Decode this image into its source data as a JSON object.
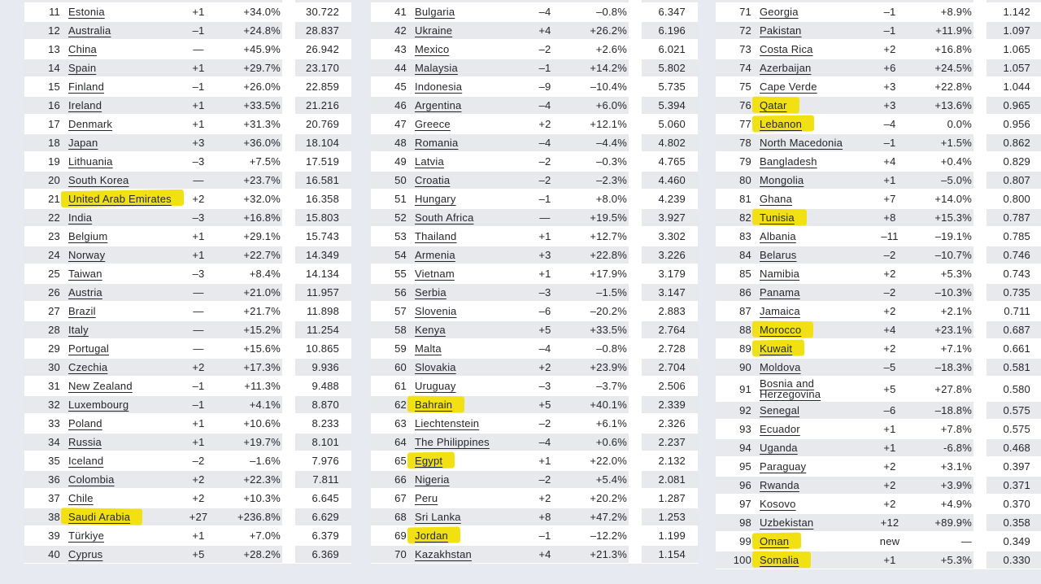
{
  "page": {
    "background_color": "#e7ebf1",
    "row_stripe_color": "#e8e9ed",
    "text_color": "#25262b",
    "highlight_color": "#f2e112"
  },
  "tables": [
    {
      "rows": [
        {
          "rank": "11",
          "country": "Estonia",
          "change": "+1",
          "pct": "+34.0%",
          "value": "30.722",
          "highlighted": false
        },
        {
          "rank": "12",
          "country": "Australia",
          "change": "–1",
          "pct": "+24.8%",
          "value": "28.837",
          "highlighted": false
        },
        {
          "rank": "13",
          "country": "China",
          "change": "—",
          "pct": "+45.9%",
          "value": "26.942",
          "highlighted": false
        },
        {
          "rank": "14",
          "country": "Spain",
          "change": "+1",
          "pct": "+29.7%",
          "value": "23.170",
          "highlighted": false
        },
        {
          "rank": "15",
          "country": "Finland",
          "change": "–1",
          "pct": "+26.0%",
          "value": "22.859",
          "highlighted": false
        },
        {
          "rank": "16",
          "country": "Ireland",
          "change": "+1",
          "pct": "+33.5%",
          "value": "21.216",
          "highlighted": false
        },
        {
          "rank": "17",
          "country": "Denmark",
          "change": "+1",
          "pct": "+31.3%",
          "value": "20.769",
          "highlighted": false
        },
        {
          "rank": "18",
          "country": "Japan",
          "change": "+3",
          "pct": "+36.0%",
          "value": "18.104",
          "highlighted": false
        },
        {
          "rank": "19",
          "country": "Lithuania",
          "change": "–3",
          "pct": "+7.5%",
          "value": "17.519",
          "highlighted": false
        },
        {
          "rank": "20",
          "country": "South Korea",
          "change": "—",
          "pct": "+23.7%",
          "value": "16.581",
          "highlighted": false
        },
        {
          "rank": "21",
          "country": "United Arab Emirates",
          "change": "+2",
          "pct": "+32.0%",
          "value": "16.358",
          "highlighted": true
        },
        {
          "rank": "22",
          "country": "India",
          "change": "–3",
          "pct": "+16.8%",
          "value": "15.803",
          "highlighted": false
        },
        {
          "rank": "23",
          "country": "Belgium",
          "change": "+1",
          "pct": "+29.1%",
          "value": "15.743",
          "highlighted": false
        },
        {
          "rank": "24",
          "country": "Norway",
          "change": "+1",
          "pct": "+22.7%",
          "value": "14.349",
          "highlighted": false
        },
        {
          "rank": "25",
          "country": "Taiwan",
          "change": "–3",
          "pct": "+8.4%",
          "value": "14.134",
          "highlighted": false
        },
        {
          "rank": "26",
          "country": "Austria",
          "change": "—",
          "pct": "+21.0%",
          "value": "11.957",
          "highlighted": false
        },
        {
          "rank": "27",
          "country": "Brazil",
          "change": "—",
          "pct": "+21.7%",
          "value": "11.898",
          "highlighted": false
        },
        {
          "rank": "28",
          "country": "Italy",
          "change": "—",
          "pct": "+15.2%",
          "value": "11.254",
          "highlighted": false
        },
        {
          "rank": "29",
          "country": "Portugal",
          "change": "—",
          "pct": "+15.6%",
          "value": "10.865",
          "highlighted": false
        },
        {
          "rank": "30",
          "country": "Czechia",
          "change": "+2",
          "pct": "+17.3%",
          "value": "9.936",
          "highlighted": false
        },
        {
          "rank": "31",
          "country": "New Zealand",
          "change": "–1",
          "pct": "+11.3%",
          "value": "9.488",
          "highlighted": false
        },
        {
          "rank": "32",
          "country": "Luxembourg",
          "change": "–1",
          "pct": "+4.1%",
          "value": "8.870",
          "highlighted": false
        },
        {
          "rank": "33",
          "country": "Poland",
          "change": "+1",
          "pct": "+10.6%",
          "value": "8.233",
          "highlighted": false
        },
        {
          "rank": "34",
          "country": "Russia",
          "change": "+1",
          "pct": "+19.7%",
          "value": "8.101",
          "highlighted": false
        },
        {
          "rank": "35",
          "country": "Iceland",
          "change": "–2",
          "pct": "–1.6%",
          "value": "7.976",
          "highlighted": false
        },
        {
          "rank": "36",
          "country": "Colombia",
          "change": "+2",
          "pct": "+22.3%",
          "value": "7.811",
          "highlighted": false
        },
        {
          "rank": "37",
          "country": "Chile",
          "change": "+2",
          "pct": "+10.3%",
          "value": "6.645",
          "highlighted": false
        },
        {
          "rank": "38",
          "country": "Saudi Arabia",
          "change": "+27",
          "pct": "+236.8%",
          "value": "6.629",
          "highlighted": true
        },
        {
          "rank": "39",
          "country": "Türkiye",
          "change": "+1",
          "pct": "+7.0%",
          "value": "6.379",
          "highlighted": false
        },
        {
          "rank": "40",
          "country": "Cyprus",
          "change": "+5",
          "pct": "+28.2%",
          "value": "6.369",
          "highlighted": false
        }
      ]
    },
    {
      "rows": [
        {
          "rank": "41",
          "country": "Bulgaria",
          "change": "–4",
          "pct": "–0.8%",
          "value": "6.347",
          "highlighted": false
        },
        {
          "rank": "42",
          "country": "Ukraine",
          "change": "+4",
          "pct": "+26.2%",
          "value": "6.196",
          "highlighted": false
        },
        {
          "rank": "43",
          "country": "Mexico",
          "change": "–2",
          "pct": "+2.6%",
          "value": "6.021",
          "highlighted": false
        },
        {
          "rank": "44",
          "country": "Malaysia",
          "change": "–1",
          "pct": "+14.2%",
          "value": "5.802",
          "highlighted": false
        },
        {
          "rank": "45",
          "country": "Indonesia",
          "change": "–9",
          "pct": "–10.4%",
          "value": "5.735",
          "highlighted": false
        },
        {
          "rank": "46",
          "country": "Argentina",
          "change": "–4",
          "pct": "+6.0%",
          "value": "5.394",
          "highlighted": false
        },
        {
          "rank": "47",
          "country": "Greece",
          "change": "+2",
          "pct": "+12.1%",
          "value": "5.060",
          "highlighted": false
        },
        {
          "rank": "48",
          "country": "Romania",
          "change": "–4",
          "pct": "–4.4%",
          "value": "4.802",
          "highlighted": false
        },
        {
          "rank": "49",
          "country": "Latvia",
          "change": "–2",
          "pct": "–0.3%",
          "value": "4.765",
          "highlighted": false
        },
        {
          "rank": "50",
          "country": "Croatia",
          "change": "–2",
          "pct": "–2.3%",
          "value": "4.460",
          "highlighted": false
        },
        {
          "rank": "51",
          "country": "Hungary",
          "change": "–1",
          "pct": "+8.0%",
          "value": "4.239",
          "highlighted": false
        },
        {
          "rank": "52",
          "country": "South Africa",
          "change": "—",
          "pct": "+19.5%",
          "value": "3.927",
          "highlighted": false
        },
        {
          "rank": "53",
          "country": "Thailand",
          "change": "+1",
          "pct": "+12.7%",
          "value": "3.302",
          "highlighted": false
        },
        {
          "rank": "54",
          "country": "Armenia",
          "change": "+3",
          "pct": "+22.8%",
          "value": "3.226",
          "highlighted": false
        },
        {
          "rank": "55",
          "country": "Vietnam",
          "change": "+1",
          "pct": "+17.9%",
          "value": "3.179",
          "highlighted": false
        },
        {
          "rank": "56",
          "country": "Serbia",
          "change": "–3",
          "pct": "–1.5%",
          "value": "3.147",
          "highlighted": false
        },
        {
          "rank": "57",
          "country": "Slovenia",
          "change": "–6",
          "pct": "–20.2%",
          "value": "2.883",
          "highlighted": false
        },
        {
          "rank": "58",
          "country": "Kenya",
          "change": "+5",
          "pct": "+33.5%",
          "value": "2.764",
          "highlighted": false
        },
        {
          "rank": "59",
          "country": "Malta",
          "change": "–4",
          "pct": "–0.8%",
          "value": "2.728",
          "highlighted": false
        },
        {
          "rank": "60",
          "country": "Slovakia",
          "change": "+2",
          "pct": "+23.9%",
          "value": "2.704",
          "highlighted": false
        },
        {
          "rank": "61",
          "country": "Uruguay",
          "change": "–3",
          "pct": "–3.7%",
          "value": "2.506",
          "highlighted": false
        },
        {
          "rank": "62",
          "country": "Bahrain",
          "change": "+5",
          "pct": "+40.1%",
          "value": "2.339",
          "highlighted": true
        },
        {
          "rank": "63",
          "country": "Liechtenstein",
          "change": "–2",
          "pct": "+6.1%",
          "value": "2.326",
          "highlighted": false
        },
        {
          "rank": "64",
          "country": "The Philippines",
          "change": "–4",
          "pct": "+0.6%",
          "value": "2.237",
          "highlighted": false
        },
        {
          "rank": "65",
          "country": "Egypt",
          "change": "+1",
          "pct": "+22.0%",
          "value": "2.132",
          "highlighted": true
        },
        {
          "rank": "66",
          "country": "Nigeria",
          "change": "–2",
          "pct": "+5.4%",
          "value": "2.081",
          "highlighted": false
        },
        {
          "rank": "67",
          "country": "Peru",
          "change": "+2",
          "pct": "+20.2%",
          "value": "1.287",
          "highlighted": false
        },
        {
          "rank": "68",
          "country": "Sri Lanka",
          "change": "+8",
          "pct": "+47.2%",
          "value": "1.253",
          "highlighted": false
        },
        {
          "rank": "69",
          "country": "Jordan",
          "change": "–1",
          "pct": "–12.2%",
          "value": "1.199",
          "highlighted": true
        },
        {
          "rank": "70",
          "country": "Kazakhstan",
          "change": "+4",
          "pct": "+21.3%",
          "value": "1.154",
          "highlighted": false
        }
      ]
    },
    {
      "rows": [
        {
          "rank": "71",
          "country": "Georgia",
          "change": "–1",
          "pct": "+8.9%",
          "value": "1.142",
          "highlighted": false
        },
        {
          "rank": "72",
          "country": "Pakistan",
          "change": "–1",
          "pct": "+11.9%",
          "value": "1.097",
          "highlighted": false
        },
        {
          "rank": "73",
          "country": "Costa Rica",
          "change": "+2",
          "pct": "+16.8%",
          "value": "1.065",
          "highlighted": false
        },
        {
          "rank": "74",
          "country": "Azerbaijan",
          "change": "+6",
          "pct": "+24.5%",
          "value": "1.057",
          "highlighted": false
        },
        {
          "rank": "75",
          "country": "Cape Verde",
          "change": "+3",
          "pct": "+22.8%",
          "value": "1.044",
          "highlighted": false
        },
        {
          "rank": "76",
          "country": "Qatar",
          "change": "+3",
          "pct": "+13.6%",
          "value": "0.965",
          "highlighted": true
        },
        {
          "rank": "77",
          "country": "Lebanon",
          "change": "–4",
          "pct": "0.0%",
          "value": "0.956",
          "highlighted": true
        },
        {
          "rank": "78",
          "country": "North Macedonia",
          "change": "–1",
          "pct": "+1.5%",
          "value": "0.862",
          "highlighted": false
        },
        {
          "rank": "79",
          "country": "Bangladesh",
          "change": "+4",
          "pct": "+0.4%",
          "value": "0.829",
          "highlighted": false
        },
        {
          "rank": "80",
          "country": "Mongolia",
          "change": "+1",
          "pct": "–5.0%",
          "value": "0.807",
          "highlighted": false
        },
        {
          "rank": "81",
          "country": "Ghana",
          "change": "+7",
          "pct": "+14.0%",
          "value": "0.800",
          "highlighted": false
        },
        {
          "rank": "82",
          "country": "Tunisia",
          "change": "+8",
          "pct": "+15.3%",
          "value": "0.787",
          "highlighted": true
        },
        {
          "rank": "83",
          "country": "Albania",
          "change": "–11",
          "pct": "–19.1%",
          "value": "0.785",
          "highlighted": false
        },
        {
          "rank": "84",
          "country": "Belarus",
          "change": "–2",
          "pct": "–10.7%",
          "value": "0.746",
          "highlighted": false
        },
        {
          "rank": "85",
          "country": "Namibia",
          "change": "+2",
          "pct": "+5.3%",
          "value": "0.743",
          "highlighted": false
        },
        {
          "rank": "86",
          "country": "Panama",
          "change": "–2",
          "pct": "–10.3%",
          "value": "0.735",
          "highlighted": false
        },
        {
          "rank": "87",
          "country": "Jamaica",
          "change": "+2",
          "pct": "+2.1%",
          "value": "0.711",
          "highlighted": false
        },
        {
          "rank": "88",
          "country": "Morocco",
          "change": "+4",
          "pct": "+23.1%",
          "value": "0.687",
          "highlighted": true
        },
        {
          "rank": "89",
          "country": "Kuwait",
          "change": "+2",
          "pct": "+7.1%",
          "value": "0.661",
          "highlighted": true
        },
        {
          "rank": "90",
          "country": "Moldova",
          "change": "–5",
          "pct": "–18.3%",
          "value": "0.581",
          "highlighted": false
        },
        {
          "rank": "91",
          "country": "Bosnia and Herzegovina",
          "change": "+5",
          "pct": "+27.8%",
          "value": "0.580",
          "highlighted": false,
          "tall": true
        },
        {
          "rank": "92",
          "country": "Senegal",
          "change": "–6",
          "pct": "–18.8%",
          "value": "0.575",
          "highlighted": false
        },
        {
          "rank": "93",
          "country": "Ecuador",
          "change": "+1",
          "pct": "+7.8%",
          "value": "0.575",
          "highlighted": false
        },
        {
          "rank": "94",
          "country": "Uganda",
          "change": "+1",
          "pct": "-6.8%",
          "value": "0.468",
          "highlighted": false
        },
        {
          "rank": "95",
          "country": "Paraguay",
          "change": "+2",
          "pct": "+3.1%",
          "value": "0.397",
          "highlighted": false
        },
        {
          "rank": "96",
          "country": "Rwanda",
          "change": "+2",
          "pct": "+3.9%",
          "value": "0.371",
          "highlighted": false
        },
        {
          "rank": "97",
          "country": "Kosovo",
          "change": "+2",
          "pct": "+4.9%",
          "value": "0.370",
          "highlighted": false
        },
        {
          "rank": "98",
          "country": "Uzbekistan",
          "change": "+12",
          "pct": "+89.9%",
          "value": "0.358",
          "highlighted": false
        },
        {
          "rank": "99",
          "country": "Oman",
          "change": "new",
          "pct": "—",
          "value": "0.349",
          "highlighted": true
        },
        {
          "rank": "100",
          "country": "Somalia",
          "change": "+1",
          "pct": "+5.3%",
          "value": "0.330",
          "highlighted": true
        }
      ]
    }
  ]
}
